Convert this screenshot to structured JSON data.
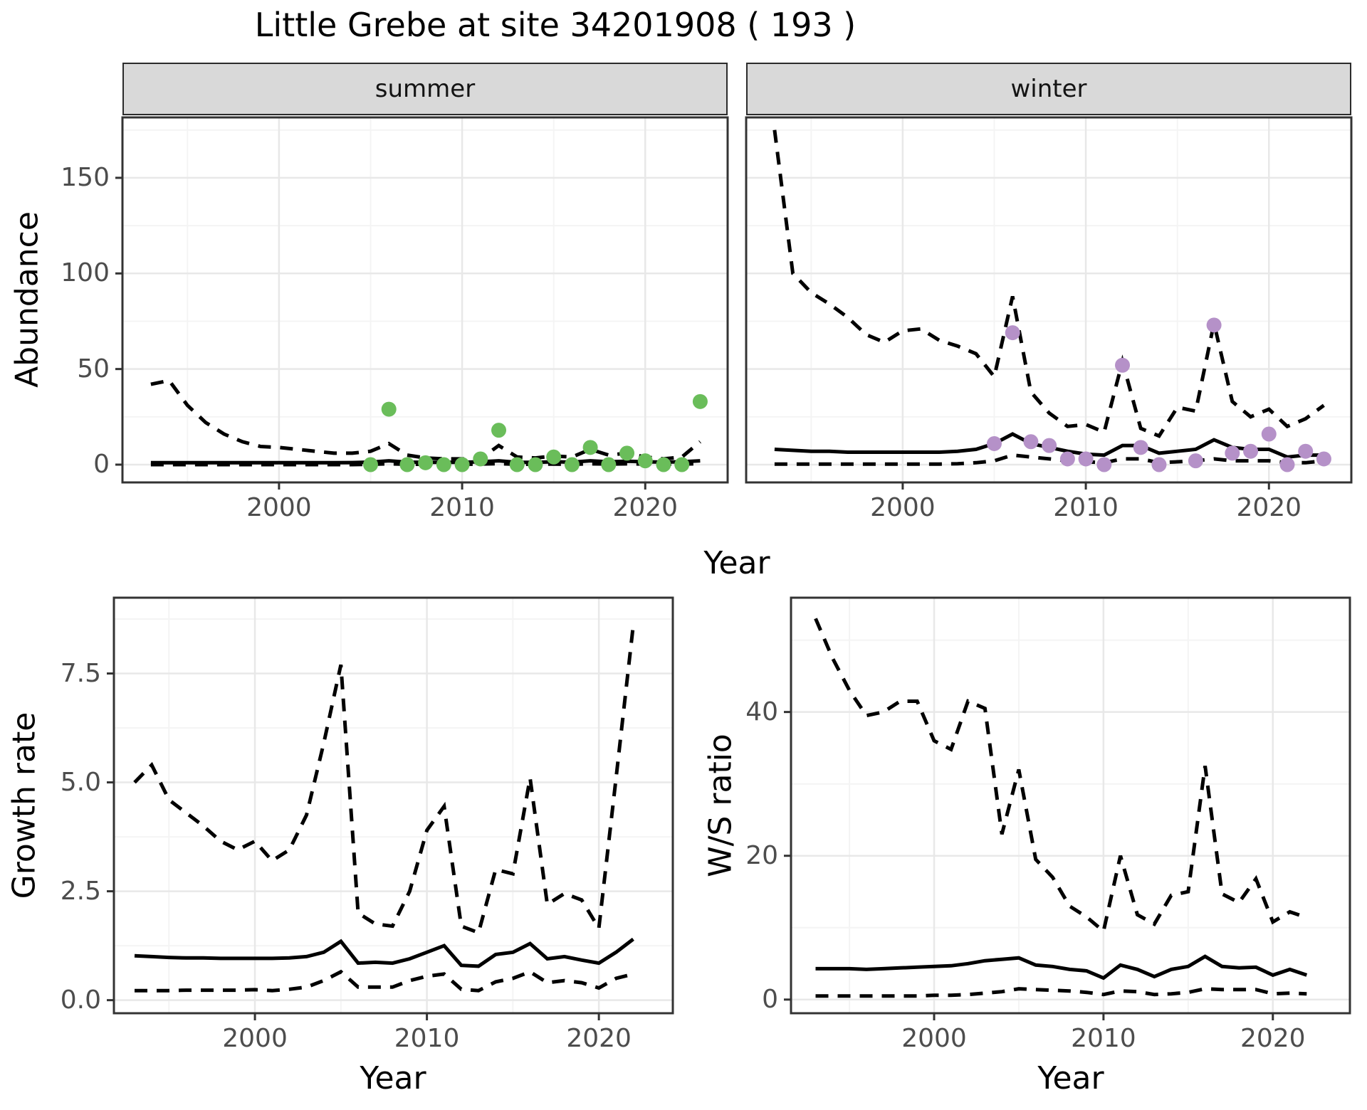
{
  "title": "Little Grebe at site 34201908 ( 193 )",
  "colors": {
    "summer_points": "#6abd5a",
    "winter_points": "#b591c8",
    "line": "#000000",
    "strip_bg": "#d9d9d9",
    "panel_border": "#333333",
    "grid_major": "#e8e8e8",
    "grid_minor": "#f4f4f4",
    "axis_text": "#4d4d4d",
    "tick_mark": "#333333"
  },
  "chart_data": [
    {
      "key": "abundance-summer",
      "type": "line",
      "strip": "summer",
      "ylabel": "Abundance",
      "xlabel": "Year",
      "x_ticks": {
        "values": [
          2000,
          2010,
          2020
        ],
        "labels": [
          "2000",
          "2010",
          "2020"
        ]
      },
      "y_ticks": {
        "values": [
          0,
          50,
          100,
          150
        ],
        "labels": [
          "0",
          "50",
          "100",
          "150"
        ]
      },
      "x_minor": [
        1995,
        2005,
        2015
      ],
      "y_minor": [
        25,
        75,
        125,
        175
      ],
      "xlim": [
        1991.45,
        2024.5
      ],
      "ylim": [
        -9.3,
        181.6
      ],
      "series": [
        {
          "name": "upper-credible-limit",
          "style": "dashed",
          "years": [
            1993,
            1994,
            1995,
            1996,
            1997,
            1998,
            1999,
            2000,
            2001,
            2002,
            2003,
            2004,
            2005,
            2006,
            2007,
            2008,
            2009,
            2010,
            2011,
            2012,
            2013,
            2014,
            2015,
            2016,
            2017,
            2018,
            2019,
            2020,
            2021,
            2022,
            2023
          ],
          "values": [
            42,
            44,
            31,
            22,
            16,
            12,
            9.5,
            9,
            8,
            7,
            6,
            6,
            7,
            11,
            5,
            3.5,
            3,
            3,
            3,
            10,
            4,
            3.5,
            4.5,
            4,
            8,
            5,
            6,
            4,
            3,
            4,
            12
          ]
        },
        {
          "name": "median-model-line",
          "style": "solid",
          "years": [
            1993,
            1994,
            1995,
            1996,
            1997,
            1998,
            1999,
            2000,
            2001,
            2002,
            2003,
            2004,
            2005,
            2006,
            2007,
            2008,
            2009,
            2010,
            2011,
            2012,
            2013,
            2014,
            2015,
            2016,
            2017,
            2018,
            2019,
            2020,
            2021,
            2022,
            2023
          ],
          "values": [
            1,
            1,
            1,
            1,
            1,
            1,
            1,
            1,
            1,
            1,
            1,
            1.1,
            1.3,
            2,
            1.3,
            1.2,
            1.2,
            1.2,
            1.5,
            2,
            1.2,
            1.2,
            1.5,
            1.3,
            2,
            1.5,
            1.8,
            1.5,
            1.3,
            1.5,
            2
          ]
        },
        {
          "name": "lower-credible-limit",
          "style": "dashed",
          "years": [
            1993,
            1994,
            1995,
            1996,
            1997,
            1998,
            1999,
            2000,
            2001,
            2002,
            2003,
            2004,
            2005,
            2006,
            2007,
            2008,
            2009,
            2010,
            2011,
            2012,
            2013,
            2014,
            2015,
            2016,
            2017,
            2018,
            2019,
            2020,
            2021,
            2022,
            2023
          ],
          "values": [
            0,
            0,
            0,
            0,
            0,
            0,
            0,
            0,
            0,
            0,
            0,
            0,
            0.2,
            0.4,
            0.2,
            0.2,
            0.2,
            0.2,
            0.3,
            0.5,
            0.2,
            0.2,
            0.3,
            0.2,
            0.4,
            0.3,
            0.4,
            0.3,
            0.2,
            0.3,
            0.5
          ]
        },
        {
          "name": "observed-counts",
          "style": "points",
          "color": "#6abd5a",
          "years": [
            2005,
            2006,
            2007,
            2008,
            2009,
            2010,
            2011,
            2012,
            2013,
            2014,
            2015,
            2016,
            2017,
            2018,
            2019,
            2020,
            2021,
            2022,
            2023
          ],
          "values": [
            0,
            29,
            0,
            1,
            0,
            0,
            3,
            18,
            0,
            0,
            4,
            0,
            9,
            0,
            6,
            2,
            0,
            0,
            33
          ]
        }
      ]
    },
    {
      "key": "abundance-winter",
      "type": "line",
      "strip": "winter",
      "ylabel": "Abundance",
      "xlabel": "Year",
      "x_ticks": {
        "values": [
          2000,
          2010,
          2020
        ],
        "labels": [
          "2000",
          "2010",
          "2020"
        ]
      },
      "y_ticks": {
        "values": [
          0,
          50,
          100,
          150
        ],
        "labels": [
          "0",
          "50",
          "100",
          "150"
        ]
      },
      "x_minor": [
        1995,
        2005,
        2015
      ],
      "y_minor": [
        25,
        75,
        125,
        175
      ],
      "xlim": [
        1991.45,
        2024.5
      ],
      "ylim": [
        -9.3,
        181.6
      ],
      "series": [
        {
          "name": "upper-credible-limit",
          "style": "dashed",
          "years": [
            1993,
            1994,
            1995,
            1996,
            1997,
            1998,
            1999,
            2000,
            2001,
            2002,
            2003,
            2004,
            2005,
            2006,
            2007,
            2008,
            2009,
            2010,
            2011,
            2012,
            2013,
            2014,
            2015,
            2016,
            2017,
            2018,
            2019,
            2020,
            2021,
            2022,
            2023
          ],
          "values": [
            175,
            100,
            90,
            84,
            77,
            68,
            64,
            70,
            71,
            65,
            62,
            58,
            46,
            88,
            38,
            27,
            20,
            21,
            17,
            54,
            19,
            15,
            30,
            28,
            74,
            33,
            25,
            29,
            20,
            24,
            31
          ]
        },
        {
          "name": "median-model-line",
          "style": "solid",
          "years": [
            1993,
            1994,
            1995,
            1996,
            1997,
            1998,
            1999,
            2000,
            2001,
            2002,
            2003,
            2004,
            2005,
            2006,
            2007,
            2008,
            2009,
            2010,
            2011,
            2012,
            2013,
            2014,
            2015,
            2016,
            2017,
            2018,
            2019,
            2020,
            2021,
            2022,
            2023
          ],
          "values": [
            8,
            7.5,
            7,
            7,
            6.5,
            6.5,
            6.5,
            6.5,
            6.5,
            6.5,
            7,
            8,
            11,
            16,
            11,
            9,
            7,
            5.5,
            5,
            10,
            10,
            6,
            7,
            8,
            13,
            9,
            8,
            8,
            4,
            5,
            5
          ]
        },
        {
          "name": "lower-credible-limit",
          "style": "dashed",
          "years": [
            1993,
            1994,
            1995,
            1996,
            1997,
            1998,
            1999,
            2000,
            2001,
            2002,
            2003,
            2004,
            2005,
            2006,
            2007,
            2008,
            2009,
            2010,
            2011,
            2012,
            2013,
            2014,
            2015,
            2016,
            2017,
            2018,
            2019,
            2020,
            2021,
            2022,
            2023
          ],
          "values": [
            0.3,
            0.3,
            0.3,
            0.3,
            0.3,
            0.3,
            0.3,
            0.3,
            0.3,
            0.3,
            0.5,
            1,
            2,
            5,
            4,
            3,
            2,
            1.5,
            1,
            3,
            3,
            1,
            1.5,
            2,
            3,
            2,
            2,
            2,
            1,
            1,
            2
          ]
        },
        {
          "name": "observed-counts",
          "style": "points",
          "color": "#b591c8",
          "years": [
            2005,
            2006,
            2007,
            2008,
            2009,
            2010,
            2011,
            2012,
            2013,
            2014,
            2016,
            2017,
            2018,
            2019,
            2020,
            2021,
            2022,
            2023
          ],
          "values": [
            11,
            69,
            12,
            10,
            3,
            3,
            0,
            52,
            9,
            0,
            2,
            73,
            6,
            7,
            16,
            0,
            7,
            3
          ]
        }
      ]
    },
    {
      "key": "growth-rate",
      "type": "line",
      "strip": "",
      "ylabel": "Growth rate",
      "xlabel": "Year",
      "x_ticks": {
        "values": [
          2000,
          2010,
          2020
        ],
        "labels": [
          "2000",
          "2010",
          "2020"
        ]
      },
      "y_ticks": {
        "values": [
          0,
          2.5,
          5,
          7.5
        ],
        "labels": [
          "0.0",
          "2.5",
          "5.0",
          "7.5"
        ]
      },
      "x_minor": [
        1995,
        2005,
        2015
      ],
      "y_minor": [
        1.25,
        3.75,
        6.25,
        8.75
      ],
      "xlim": [
        1991.8,
        2024.3
      ],
      "ylim": [
        -0.3,
        9.24
      ],
      "series": [
        {
          "name": "upper-credible-limit",
          "style": "dashed",
          "years": [
            1993,
            1994,
            1995,
            1996,
            1997,
            1998,
            1999,
            2000,
            2001,
            2002,
            2003,
            2004,
            2005,
            2006,
            2007,
            2008,
            2009,
            2010,
            2011,
            2012,
            2013,
            2014,
            2015,
            2016,
            2017,
            2018,
            2019,
            2020,
            2021,
            2022
          ],
          "values": [
            5.0,
            5.4,
            4.6,
            4.3,
            4.0,
            3.65,
            3.45,
            3.65,
            3.2,
            3.45,
            4.25,
            5.9,
            7.7,
            2.0,
            1.75,
            1.7,
            2.5,
            3.9,
            4.45,
            1.7,
            1.55,
            3.0,
            2.9,
            5.1,
            2.2,
            2.45,
            2.3,
            1.65,
            5.1,
            8.6
          ]
        },
        {
          "name": "median-model-line",
          "style": "solid",
          "years": [
            1993,
            1994,
            1995,
            1996,
            1997,
            1998,
            1999,
            2000,
            2001,
            2002,
            2003,
            2004,
            2005,
            2006,
            2007,
            2008,
            2009,
            2010,
            2011,
            2012,
            2013,
            2014,
            2015,
            2016,
            2017,
            2018,
            2019,
            2020,
            2021,
            2022
          ],
          "values": [
            1.02,
            1.0,
            0.98,
            0.97,
            0.97,
            0.96,
            0.96,
            0.96,
            0.96,
            0.97,
            1.0,
            1.1,
            1.35,
            0.85,
            0.87,
            0.85,
            0.95,
            1.1,
            1.25,
            0.8,
            0.78,
            1.05,
            1.1,
            1.3,
            0.95,
            1.0,
            0.92,
            0.85,
            1.1,
            1.4
          ]
        },
        {
          "name": "lower-credible-limit",
          "style": "dashed",
          "years": [
            1993,
            1994,
            1995,
            1996,
            1997,
            1998,
            1999,
            2000,
            2001,
            2002,
            2003,
            2004,
            2005,
            2006,
            2007,
            2008,
            2009,
            2010,
            2011,
            2012,
            2013,
            2014,
            2015,
            2016,
            2017,
            2018,
            2019,
            2020,
            2021,
            2022
          ],
          "values": [
            0.22,
            0.22,
            0.22,
            0.23,
            0.23,
            0.23,
            0.23,
            0.24,
            0.22,
            0.25,
            0.3,
            0.45,
            0.65,
            0.3,
            0.3,
            0.3,
            0.45,
            0.55,
            0.6,
            0.25,
            0.22,
            0.42,
            0.5,
            0.65,
            0.4,
            0.45,
            0.4,
            0.28,
            0.5,
            0.6
          ]
        }
      ]
    },
    {
      "key": "ws-ratio",
      "type": "line",
      "strip": "",
      "ylabel": "W/S ratio",
      "xlabel": "Year",
      "x_ticks": {
        "values": [
          2000,
          2010,
          2020
        ],
        "labels": [
          "2000",
          "2010",
          "2020"
        ]
      },
      "y_ticks": {
        "values": [
          0,
          20,
          40
        ],
        "labels": [
          "0",
          "20",
          "40"
        ]
      },
      "x_minor": [
        1995,
        2005,
        2015
      ],
      "y_minor": [
        10,
        30,
        50
      ],
      "xlim": [
        1991.55,
        2024.55
      ],
      "ylim": [
        -1.9,
        55.9
      ],
      "series": [
        {
          "name": "upper-credible-limit",
          "style": "dashed",
          "years": [
            1993,
            1994,
            1995,
            1996,
            1997,
            1998,
            1999,
            2000,
            2001,
            2002,
            2003,
            2004,
            2005,
            2006,
            2007,
            2008,
            2009,
            2010,
            2011,
            2012,
            2013,
            2014,
            2015,
            2016,
            2017,
            2018,
            2019,
            2020,
            2021,
            2022
          ],
          "values": [
            53,
            47.5,
            43,
            39.5,
            40,
            41.5,
            41.5,
            36,
            34.8,
            41.5,
            40.5,
            23,
            32,
            19.5,
            17,
            13,
            11.5,
            9.5,
            20,
            11.8,
            10.5,
            14.5,
            15,
            32.5,
            14.7,
            13.5,
            16.8,
            10.8,
            12.2,
            11.4
          ]
        },
        {
          "name": "median-model-line",
          "style": "solid",
          "years": [
            1993,
            1994,
            1995,
            1996,
            1997,
            1998,
            1999,
            2000,
            2001,
            2002,
            2003,
            2004,
            2005,
            2006,
            2007,
            2008,
            2009,
            2010,
            2011,
            2012,
            2013,
            2014,
            2015,
            2016,
            2017,
            2018,
            2019,
            2020,
            2021,
            2022
          ],
          "values": [
            4.3,
            4.3,
            4.3,
            4.2,
            4.3,
            4.4,
            4.5,
            4.6,
            4.7,
            5.0,
            5.4,
            5.6,
            5.8,
            4.8,
            4.6,
            4.2,
            4.0,
            3.0,
            4.8,
            4.2,
            3.2,
            4.2,
            4.6,
            6.0,
            4.6,
            4.4,
            4.5,
            3.4,
            4.2,
            3.4
          ]
        },
        {
          "name": "lower-credible-limit",
          "style": "dashed",
          "years": [
            1993,
            1994,
            1995,
            1996,
            1997,
            1998,
            1999,
            2000,
            2001,
            2002,
            2003,
            2004,
            2005,
            2006,
            2007,
            2008,
            2009,
            2010,
            2011,
            2012,
            2013,
            2014,
            2015,
            2016,
            2017,
            2018,
            2019,
            2020,
            2021,
            2022
          ],
          "values": [
            0.5,
            0.5,
            0.5,
            0.5,
            0.5,
            0.5,
            0.5,
            0.6,
            0.6,
            0.7,
            0.9,
            1.1,
            1.5,
            1.4,
            1.3,
            1.2,
            1.0,
            0.7,
            1.2,
            1.1,
            0.7,
            0.8,
            1.0,
            1.5,
            1.4,
            1.4,
            1.4,
            0.8,
            0.9,
            0.8
          ]
        }
      ]
    }
  ]
}
